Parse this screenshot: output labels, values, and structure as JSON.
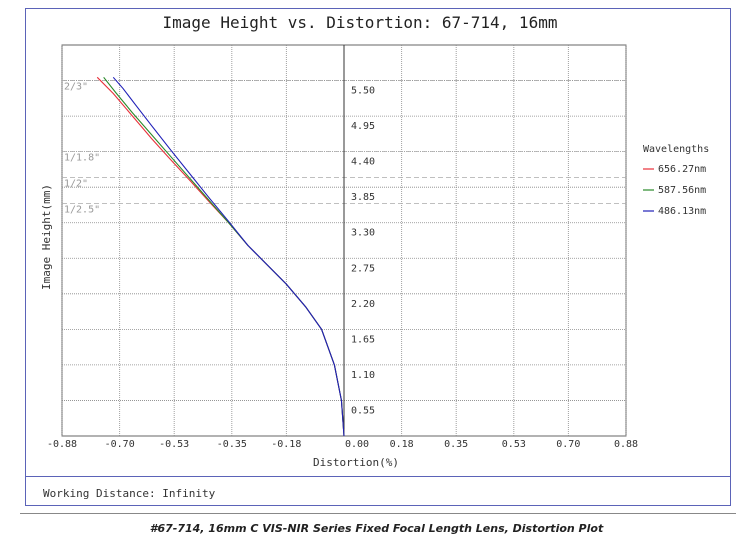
{
  "chart_data": {
    "type": "line",
    "title": "Image Height vs. Distortion: 67-714, 16mm",
    "xlabel": "Distortion(%)",
    "ylabel": "Image Height(mm)",
    "xlim": [
      -0.88,
      0.88
    ],
    "ylim": [
      0,
      6.05
    ],
    "x_ticks": [
      "-0.88",
      "-0.70",
      "-0.53",
      "-0.35",
      "-0.18",
      "0.00",
      "0.18",
      "0.35",
      "0.53",
      "0.70",
      "0.88"
    ],
    "y_ticks": [
      "0.55",
      "1.10",
      "1.65",
      "2.20",
      "2.75",
      "3.30",
      "3.85",
      "4.40",
      "4.95",
      "5.50"
    ],
    "grid": true,
    "legend_title": "Wavelengths",
    "legend_position": "right",
    "sensor_lines": [
      {
        "label": "2/3\"",
        "y": 5.5
      },
      {
        "label": "1/1.8\"",
        "y": 4.4
      },
      {
        "label": "1/2\"",
        "y": 4.0
      },
      {
        "label": "1/2.5\"",
        "y": 3.6
      }
    ],
    "series": [
      {
        "name": "656.27nm",
        "color": "#e8303a",
        "x": [
          0.0,
          -0.008,
          -0.03,
          -0.07,
          -0.12,
          -0.18,
          -0.24,
          -0.3,
          -0.36,
          -0.42,
          -0.48,
          -0.54,
          -0.6,
          -0.66,
          -0.72,
          -0.77
        ],
        "y": [
          0.0,
          0.55,
          1.1,
          1.65,
          2.0,
          2.35,
          2.65,
          2.95,
          3.3,
          3.62,
          3.95,
          4.27,
          4.6,
          4.95,
          5.3,
          5.55
        ]
      },
      {
        "name": "587.56nm",
        "color": "#2a8a2a",
        "x": [
          0.0,
          -0.008,
          -0.03,
          -0.07,
          -0.12,
          -0.18,
          -0.24,
          -0.3,
          -0.36,
          -0.42,
          -0.48,
          -0.54,
          -0.6,
          -0.66,
          -0.71,
          -0.75
        ],
        "y": [
          0.0,
          0.55,
          1.1,
          1.65,
          2.0,
          2.35,
          2.65,
          2.95,
          3.3,
          3.64,
          3.98,
          4.32,
          4.66,
          5.0,
          5.3,
          5.55
        ]
      },
      {
        "name": "486.13nm",
        "color": "#2020b8",
        "x": [
          0.0,
          -0.008,
          -0.03,
          -0.07,
          -0.12,
          -0.18,
          -0.24,
          -0.3,
          -0.36,
          -0.42,
          -0.48,
          -0.54,
          -0.6,
          -0.65,
          -0.69,
          -0.72
        ],
        "y": [
          0.0,
          0.55,
          1.1,
          1.65,
          2.0,
          2.35,
          2.65,
          2.95,
          3.32,
          3.68,
          4.05,
          4.42,
          4.8,
          5.12,
          5.38,
          5.55
        ]
      }
    ]
  },
  "footer": {
    "working_distance": "Working Distance: Infinity"
  },
  "caption": "#67-714, 16mm C VIS-NIR Series Fixed Focal Length Lens, Distortion Plot"
}
